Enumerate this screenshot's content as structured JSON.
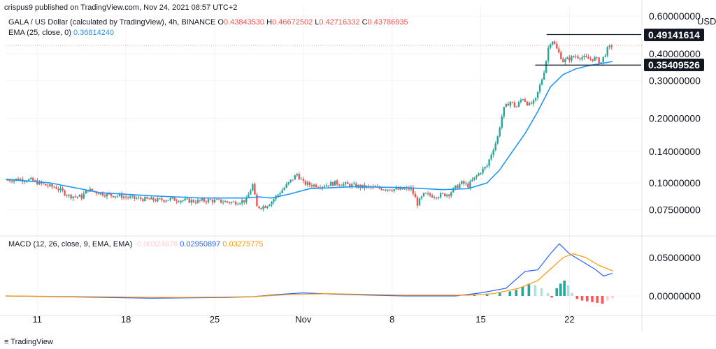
{
  "header": {
    "publish_line": "crispus9 published on TradingView.com, Nov 24, 2021 08:57 UTC+2",
    "symbol_line": "GALA / US Dollar (calculated by TradingView), 4h, BINANCE",
    "ohlc": {
      "o_label": "O",
      "o": "0.43843530",
      "h_label": "H",
      "h": "0.46672502",
      "l_label": "L",
      "l": "0.42716332",
      "c_label": "C",
      "c": "0.43786935"
    },
    "ema_label": "EMA (25, close, 0)",
    "ema_value": "0.36814240",
    "macd_label": "MACD (12, 26, close, 9, EMA, EMA)",
    "macd_hist": "-0.00324878",
    "macd_line": "0.02950897",
    "macd_signal": "0.03275775"
  },
  "currency": "USD",
  "price_tags": {
    "high": "0.49141614",
    "low": "0.35409526"
  },
  "footer": {
    "brand": "TradingView"
  },
  "colors": {
    "up": "#26a69a",
    "down": "#ef5350",
    "ema": "#2196f3",
    "macd": "#2962ff",
    "signal": "#ff9800",
    "hist_up": "#26a69a",
    "hist_up_light": "#b2dfdb",
    "hist_down": "#ff5252",
    "hist_down_light": "#ffcdd2",
    "grid": "#f0f3fa",
    "dotted": "#ef9a9a"
  },
  "chart_data": {
    "type": "candlestick",
    "price_scale": "log",
    "y_ticks": [
      "0.60000000",
      "0.40000000",
      "0.30000000",
      "0.20000000",
      "0.14000000",
      "0.10000000",
      "0.07500000"
    ],
    "macd_ticks": [
      "0.05000000",
      "0.00000000"
    ],
    "x_ticks": [
      "11",
      "18",
      "25",
      "Nov",
      "8",
      "15",
      "22"
    ],
    "x_tick_days": [
      11,
      18,
      25,
      32,
      39,
      46,
      53
    ],
    "x_start_day": 8.5,
    "x_end_day": 56.4,
    "close_series": [
      [
        8.5,
        0.103
      ],
      [
        9.5,
        0.104
      ],
      [
        10.5,
        0.103
      ],
      [
        11.5,
        0.098
      ],
      [
        12.5,
        0.095
      ],
      [
        13.5,
        0.087
      ],
      [
        14.5,
        0.086
      ],
      [
        15.0,
        0.093
      ],
      [
        15.5,
        0.091
      ],
      [
        16.5,
        0.088
      ],
      [
        17.5,
        0.087
      ],
      [
        18.5,
        0.085
      ],
      [
        19.5,
        0.084
      ],
      [
        20.5,
        0.083
      ],
      [
        21.5,
        0.084
      ],
      [
        22.5,
        0.083
      ],
      [
        23.5,
        0.082
      ],
      [
        24.5,
        0.083
      ],
      [
        25.5,
        0.082
      ],
      [
        26.5,
        0.081
      ],
      [
        27.5,
        0.083
      ],
      [
        28.0,
        0.098
      ],
      [
        28.3,
        0.077
      ],
      [
        29.0,
        0.078
      ],
      [
        29.5,
        0.082
      ],
      [
        30.5,
        0.095
      ],
      [
        31.2,
        0.105
      ],
      [
        31.5,
        0.11
      ],
      [
        32.0,
        0.1
      ],
      [
        32.5,
        0.098
      ],
      [
        33.5,
        0.097
      ],
      [
        34.5,
        0.1
      ],
      [
        35.5,
        0.098
      ],
      [
        36.5,
        0.096
      ],
      [
        37.5,
        0.095
      ],
      [
        38.5,
        0.094
      ],
      [
        39.5,
        0.093
      ],
      [
        40.5,
        0.094
      ],
      [
        41.0,
        0.08
      ],
      [
        41.5,
        0.088
      ],
      [
        42.5,
        0.087
      ],
      [
        43.5,
        0.089
      ],
      [
        44.0,
        0.095
      ],
      [
        44.5,
        0.1
      ],
      [
        45.0,
        0.097
      ],
      [
        45.5,
        0.105
      ],
      [
        46.0,
        0.113
      ],
      [
        46.5,
        0.12
      ],
      [
        46.8,
        0.135
      ],
      [
        47.3,
        0.16
      ],
      [
        47.8,
        0.22
      ],
      [
        48.3,
        0.24
      ],
      [
        48.8,
        0.225
      ],
      [
        49.3,
        0.25
      ],
      [
        49.8,
        0.23
      ],
      [
        50.3,
        0.24
      ],
      [
        50.8,
        0.3
      ],
      [
        51.1,
        0.35
      ],
      [
        51.3,
        0.42
      ],
      [
        51.6,
        0.47
      ],
      [
        52.0,
        0.42
      ],
      [
        52.5,
        0.37
      ],
      [
        53.0,
        0.38
      ],
      [
        53.5,
        0.39
      ],
      [
        54.0,
        0.385
      ],
      [
        54.5,
        0.378
      ],
      [
        55.0,
        0.38
      ],
      [
        55.5,
        0.365
      ],
      [
        56.0,
        0.42
      ],
      [
        56.4,
        0.438
      ]
    ],
    "ema_series": [
      [
        8.5,
        0.104
      ],
      [
        12,
        0.1
      ],
      [
        16,
        0.09
      ],
      [
        20,
        0.087
      ],
      [
        24,
        0.085
      ],
      [
        27.5,
        0.085
      ],
      [
        28.5,
        0.086
      ],
      [
        29.5,
        0.085
      ],
      [
        31,
        0.089
      ],
      [
        32.5,
        0.094
      ],
      [
        36,
        0.096
      ],
      [
        40,
        0.095
      ],
      [
        43,
        0.093
      ],
      [
        45,
        0.094
      ],
      [
        46.5,
        0.1
      ],
      [
        47.5,
        0.115
      ],
      [
        48.5,
        0.14
      ],
      [
        49.5,
        0.17
      ],
      [
        50.5,
        0.215
      ],
      [
        51.5,
        0.28
      ],
      [
        52.5,
        0.32
      ],
      [
        53.5,
        0.34
      ],
      [
        54.5,
        0.352
      ],
      [
        55.5,
        0.36
      ],
      [
        56.4,
        0.368
      ]
    ],
    "macd_series": [
      [
        8.5,
        0.0
      ],
      [
        13,
        -0.001
      ],
      [
        20,
        -0.003
      ],
      [
        26,
        -0.002
      ],
      [
        28,
        -0.001
      ],
      [
        30,
        0.002
      ],
      [
        32,
        0.004
      ],
      [
        35,
        0.002
      ],
      [
        40,
        0.0
      ],
      [
        44,
        0.0
      ],
      [
        46,
        0.004
      ],
      [
        48,
        0.01
      ],
      [
        49.5,
        0.032
      ],
      [
        50.5,
        0.034
      ],
      [
        51.5,
        0.055
      ],
      [
        52.2,
        0.068
      ],
      [
        53,
        0.055
      ],
      [
        54,
        0.045
      ],
      [
        55,
        0.035
      ],
      [
        55.7,
        0.026
      ],
      [
        56.4,
        0.0295
      ]
    ],
    "signal_series": [
      [
        8.5,
        0.0
      ],
      [
        15,
        -0.001
      ],
      [
        22,
        -0.002
      ],
      [
        28,
        -0.001
      ],
      [
        31,
        0.002
      ],
      [
        34,
        0.003
      ],
      [
        40,
        0.001
      ],
      [
        45,
        0.001
      ],
      [
        47,
        0.003
      ],
      [
        49,
        0.01
      ],
      [
        50.5,
        0.02
      ],
      [
        51.5,
        0.035
      ],
      [
        52.5,
        0.05
      ],
      [
        53.3,
        0.055
      ],
      [
        54.3,
        0.05
      ],
      [
        55.3,
        0.04
      ],
      [
        56.4,
        0.0328
      ]
    ],
    "histogram": [
      [
        45.5,
        0.001
      ],
      [
        46.5,
        0.002
      ],
      [
        47.5,
        0.004
      ],
      [
        48.3,
        0.006
      ],
      [
        48.8,
        0.008
      ],
      [
        49.3,
        0.012
      ],
      [
        49.8,
        0.016
      ],
      [
        50.3,
        0.014
      ],
      [
        50.8,
        0.01
      ],
      [
        51.3,
        0.004
      ],
      [
        51.6,
        -0.002
      ],
      [
        52.0,
        0.01
      ],
      [
        52.3,
        0.016
      ],
      [
        52.6,
        0.02
      ],
      [
        52.9,
        0.014
      ],
      [
        53.2,
        0.004
      ],
      [
        53.6,
        -0.004
      ],
      [
        54.0,
        -0.006
      ],
      [
        54.4,
        -0.007
      ],
      [
        54.8,
        -0.008
      ],
      [
        55.2,
        -0.009
      ],
      [
        55.6,
        -0.01
      ],
      [
        56.0,
        -0.006
      ],
      [
        56.4,
        -0.003
      ]
    ]
  }
}
